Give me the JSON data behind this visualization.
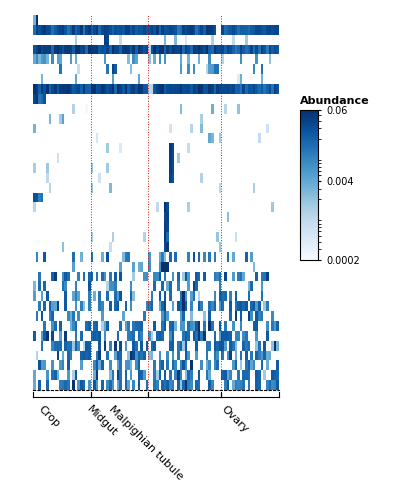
{
  "tissue_labels": [
    "Crop",
    "Midgut",
    "Malpighian tubule",
    "Ovary"
  ],
  "tissue_sizes": [
    22,
    22,
    28,
    22
  ],
  "n_rows": 38,
  "colormap": "Blues",
  "vmin_log": 0.0002,
  "vmax": 0.06,
  "colorbar_ticks": [
    0.06,
    0.004,
    0.0002
  ],
  "colorbar_label": "Abundance",
  "background_color": "#ffffff",
  "figure_width": 4.16,
  "figure_height": 5.0,
  "dpi": 100,
  "seed": 7
}
